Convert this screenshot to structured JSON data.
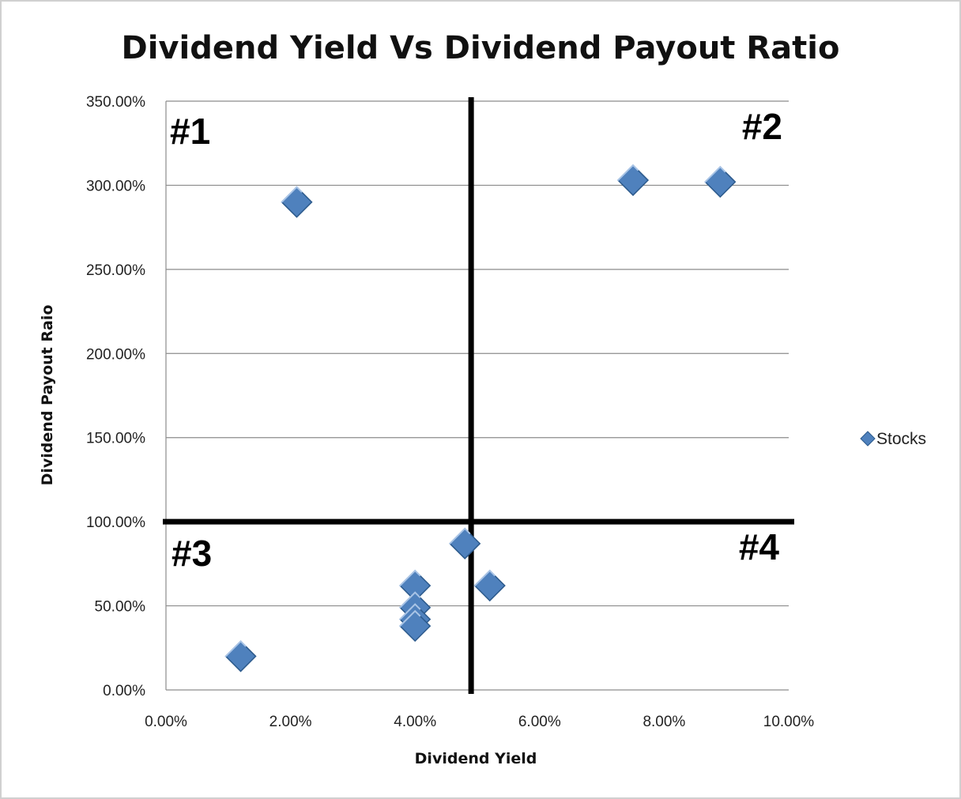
{
  "chart_data": {
    "type": "scatter",
    "title": "Dividend Yield Vs Dividend Payout Ratio",
    "xlabel": "Dividend Yield",
    "ylabel": "Dividend Payout Raio",
    "xlim": [
      0,
      0.1
    ],
    "ylim": [
      0,
      3.5
    ],
    "x_ticks": [
      "0.00%",
      "2.00%",
      "4.00%",
      "6.00%",
      "8.00%",
      "10.00%"
    ],
    "y_ticks": [
      "0.00%",
      "50.00%",
      "100.00%",
      "150.00%",
      "200.00%",
      "250.00%",
      "300.00%",
      "350.00%"
    ],
    "grid": "horizontal",
    "legend": "right",
    "series": [
      {
        "name": "Stocks",
        "color": "#4f81bd",
        "marker": "diamond",
        "points": [
          {
            "x": 0.021,
            "y": 2.9
          },
          {
            "x": 0.075,
            "y": 3.03
          },
          {
            "x": 0.089,
            "y": 3.02
          },
          {
            "x": 0.012,
            "y": 0.2
          },
          {
            "x": 0.04,
            "y": 0.62
          },
          {
            "x": 0.04,
            "y": 0.49
          },
          {
            "x": 0.04,
            "y": 0.42
          },
          {
            "x": 0.04,
            "y": 0.38
          },
          {
            "x": 0.048,
            "y": 0.87
          },
          {
            "x": 0.052,
            "y": 0.62
          }
        ]
      }
    ],
    "divider_lines": {
      "x": 0.049,
      "y": 1.0
    },
    "quadrant_labels": [
      "#1",
      "#2",
      "#3",
      "#4"
    ]
  }
}
